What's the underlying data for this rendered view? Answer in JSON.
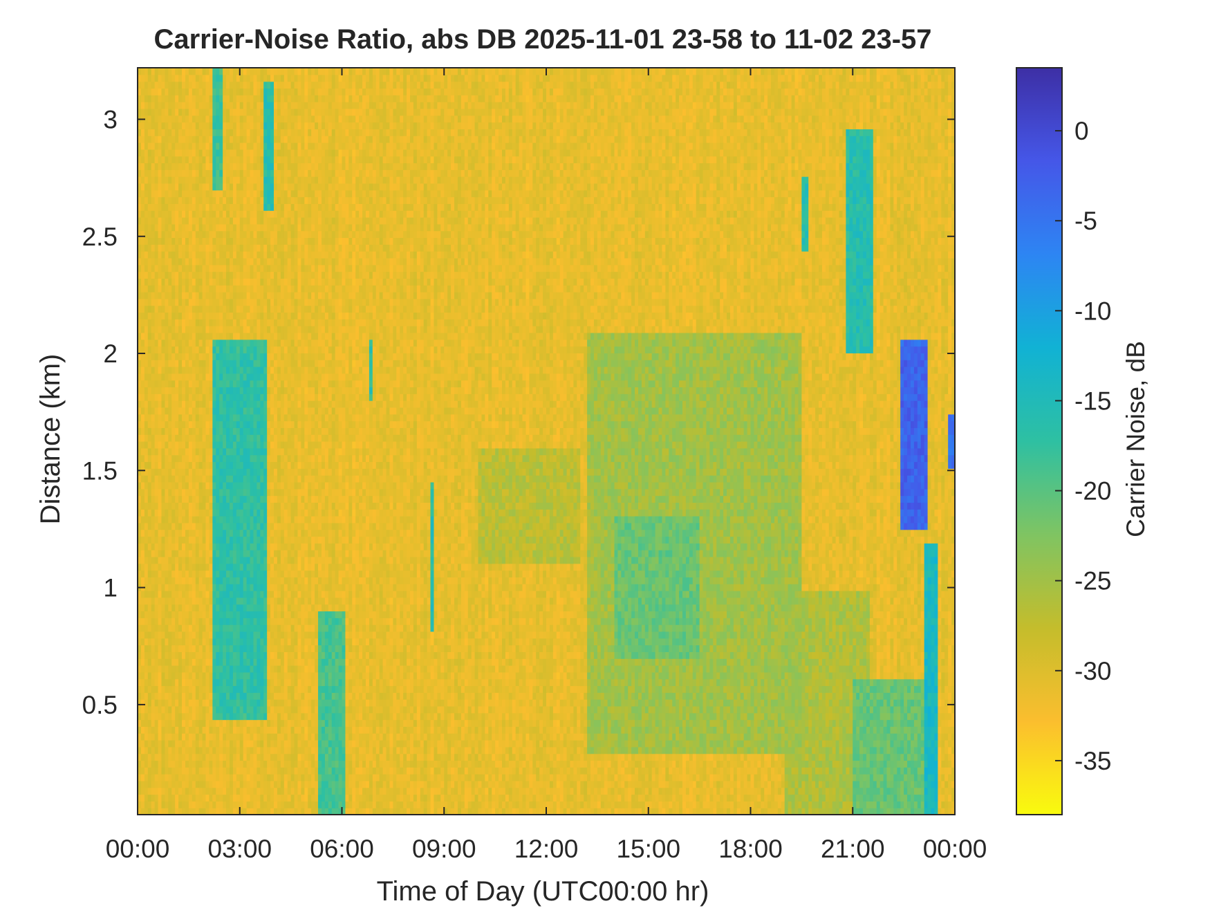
{
  "chart_data": {
    "type": "heatmap",
    "title": "Carrier-Noise Ratio, abs DB 2025-11-01 23-58 to 11-02 23-57",
    "xlabel": "Time of Day (UTC00:00 hr)",
    "ylabel": "Distance (km)",
    "x_ticks": [
      "00:00",
      "03:00",
      "06:00",
      "09:00",
      "12:00",
      "15:00",
      "18:00",
      "21:00",
      "00:00"
    ],
    "x_tick_hours": [
      0,
      3,
      6,
      9,
      12,
      15,
      18,
      21,
      24
    ],
    "xlim_hours": [
      0,
      24
    ],
    "y_ticks": [
      "0.5",
      "1",
      "1.5",
      "2",
      "2.5",
      "3"
    ],
    "y_tick_values": [
      0.5,
      1,
      1.5,
      2,
      2.5,
      3
    ],
    "ylim": [
      0.03,
      3.22
    ],
    "colorbar": {
      "label": "Carrier Noise, dB",
      "ticks": [
        "0",
        "-5",
        "-10",
        "-15",
        "-20",
        "-25",
        "-30",
        "-35"
      ],
      "tick_values": [
        0,
        -5,
        -10,
        -15,
        -20,
        -25,
        -30,
        -35
      ],
      "range": [
        -38,
        3.5
      ],
      "colormap": "parula-reversed",
      "colors": [
        "#f9fb0e",
        "#fbbe2e",
        "#c4bd2c",
        "#7fc462",
        "#2ec0a2",
        "#11b2d4",
        "#2d85f3",
        "#4557e8",
        "#3d2fa5"
      ]
    },
    "background_db": -31,
    "features": [
      {
        "t0": 2.2,
        "t1": 3.8,
        "d0": 0.45,
        "d1": 2.05,
        "db": -17
      },
      {
        "t0": 2.2,
        "t1": 2.5,
        "d0": 2.7,
        "d1": 3.22,
        "db": -18
      },
      {
        "t0": 3.7,
        "t1": 4.0,
        "d0": 2.6,
        "d1": 3.15,
        "db": -16
      },
      {
        "t0": 5.3,
        "t1": 6.1,
        "d0": 0.03,
        "d1": 0.9,
        "db": -19
      },
      {
        "t0": 6.8,
        "t1": 6.9,
        "d0": 1.8,
        "d1": 2.05,
        "db": -17
      },
      {
        "t0": 8.6,
        "t1": 8.7,
        "d0": 0.8,
        "d1": 1.45,
        "db": -16
      },
      {
        "t0": 10.0,
        "t1": 13.0,
        "d0": 1.1,
        "d1": 1.6,
        "db": -27
      },
      {
        "t0": 13.2,
        "t1": 19.5,
        "d0": 0.3,
        "d1": 2.1,
        "db": -25
      },
      {
        "t0": 14.0,
        "t1": 16.5,
        "d0": 0.7,
        "d1": 1.3,
        "db": -21
      },
      {
        "t0": 19.0,
        "t1": 21.5,
        "d0": 0.03,
        "d1": 1.0,
        "db": -26
      },
      {
        "t0": 21.0,
        "t1": 23.5,
        "d0": 0.03,
        "d1": 0.6,
        "db": -21
      },
      {
        "t0": 19.5,
        "t1": 19.7,
        "d0": 2.45,
        "d1": 2.75,
        "db": -16
      },
      {
        "t0": 20.8,
        "t1": 21.6,
        "d0": 2.0,
        "d1": 2.95,
        "db": -16
      },
      {
        "t0": 22.4,
        "t1": 23.2,
        "d0": 1.25,
        "d1": 2.05,
        "db": -3
      },
      {
        "t0": 23.1,
        "t1": 23.5,
        "d0": 0.03,
        "d1": 1.2,
        "db": -14
      },
      {
        "t0": 23.8,
        "t1": 24.0,
        "d0": 1.5,
        "d1": 1.75,
        "db": -5
      }
    ]
  }
}
